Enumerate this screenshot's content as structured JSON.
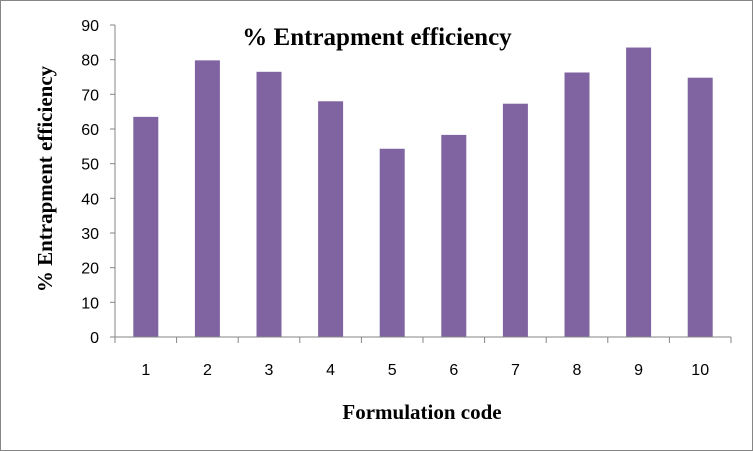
{
  "chart_data": {
    "type": "bar",
    "title": "% Entrapment efficiency",
    "xlabel": "Formulation code",
    "ylabel": "% Entrapment efficiency",
    "categories": [
      "1",
      "2",
      "3",
      "4",
      "5",
      "6",
      "7",
      "8",
      "9",
      "10"
    ],
    "values": [
      63.5,
      79.8,
      76.5,
      68,
      54.3,
      58.3,
      67.3,
      76.3,
      83.5,
      74.8
    ],
    "ylim": [
      0,
      90
    ],
    "yticks": [
      0,
      10,
      20,
      30,
      40,
      50,
      60,
      70,
      80,
      90
    ],
    "grid": false,
    "legend": "none",
    "bar_color": "#8064A2"
  }
}
